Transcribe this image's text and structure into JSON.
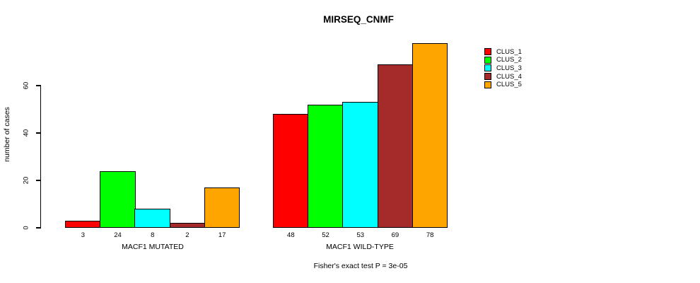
{
  "chart_data": {
    "type": "bar",
    "title": "MIRSEQ_CNMF",
    "ylabel": "number of cases",
    "xlabel": "",
    "yticks": [
      0,
      20,
      40,
      60
    ],
    "ylim": [
      0,
      80
    ],
    "grid": false,
    "legend_position": "right",
    "bar_value_labels_shown": true,
    "groups": [
      {
        "label": "MACF1 MUTATED",
        "values": [
          3,
          24,
          8,
          2,
          17
        ]
      },
      {
        "label": "MACF1 WILD-TYPE",
        "values": [
          48,
          52,
          53,
          69,
          78
        ]
      }
    ],
    "series": [
      {
        "name": "CLUS_1",
        "color": "#FF0000",
        "values": [
          3,
          48
        ]
      },
      {
        "name": "CLUS_2",
        "color": "#00FF00",
        "values": [
          24,
          52
        ]
      },
      {
        "name": "CLUS_3",
        "color": "#00FFFF",
        "values": [
          8,
          53
        ]
      },
      {
        "name": "CLUS_4",
        "color": "#A52A2A",
        "values": [
          2,
          69
        ]
      },
      {
        "name": "CLUS_5",
        "color": "#FFA500",
        "values": [
          17,
          78
        ]
      }
    ],
    "annotation": "Fisher's exact test P = 3e-05"
  },
  "colors": {
    "axis": "#000000",
    "text": "#000000",
    "background": "#FFFFFF"
  }
}
